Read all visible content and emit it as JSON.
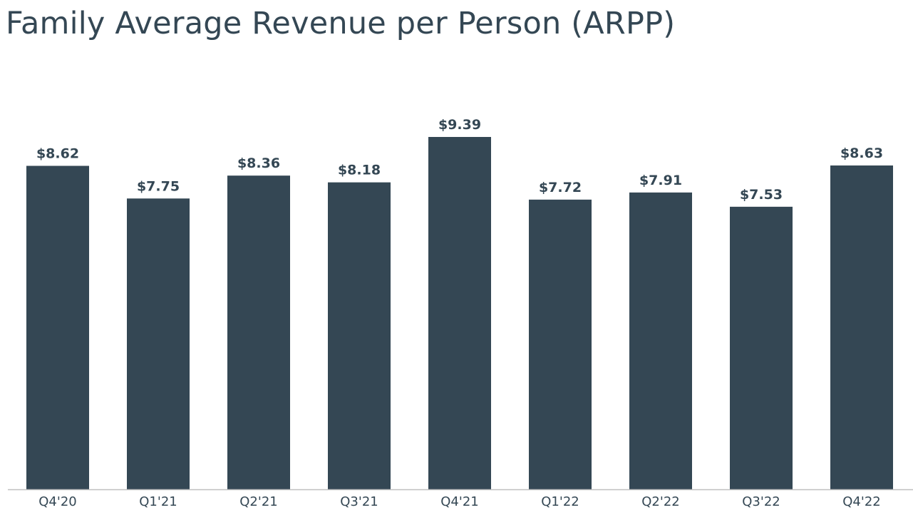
{
  "chart_data": {
    "type": "bar",
    "title": "Family Average Revenue per Person (ARPP)",
    "categories": [
      "Q4'20",
      "Q1'21",
      "Q2'21",
      "Q3'21",
      "Q4'21",
      "Q1'22",
      "Q2'22",
      "Q3'22",
      "Q4'22"
    ],
    "values": [
      8.62,
      7.75,
      8.36,
      8.18,
      9.39,
      7.72,
      7.91,
      7.53,
      8.63
    ],
    "data_labels": [
      "$8.62",
      "$7.75",
      "$8.36",
      "$8.18",
      "$9.39",
      "$7.72",
      "$7.91",
      "$7.53",
      "$8.63"
    ],
    "xlabel": "",
    "ylabel": "",
    "ylim": [
      0,
      9.39
    ],
    "grid": false,
    "legend": "none",
    "bar_color": "#344754",
    "axis_color": "#bfbfbf",
    "text_color": "#344754"
  }
}
